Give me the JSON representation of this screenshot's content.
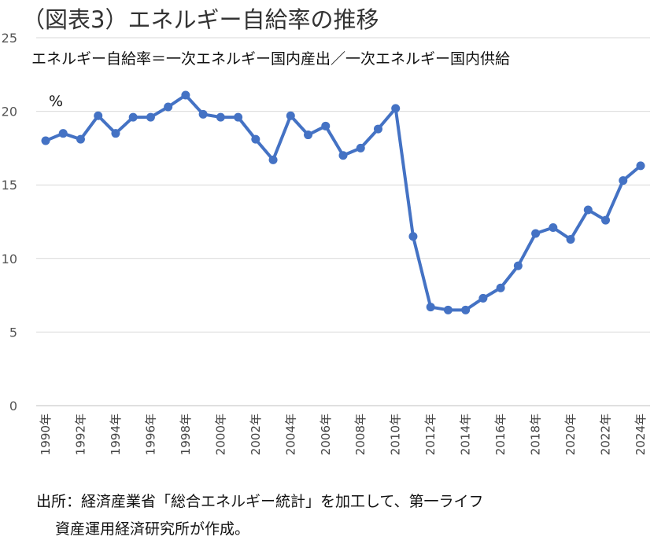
{
  "title": "（図表3）エネルギー自給率の推移",
  "subtitle": "エネルギー自給率＝一次エネルギー国内産出／一次エネルギー国内供給",
  "source": {
    "line1": "出所：経済産業省「総合エネルギー統計」を加工して、第一ライフ",
    "line2": "資産運用経済研究所が作成。"
  },
  "chart_data": {
    "type": "line",
    "unit_label": "%",
    "ylim": [
      0,
      25
    ],
    "y_ticks": [
      "0",
      "5",
      "10",
      "15",
      "20",
      "25"
    ],
    "grid": true,
    "legend": "none",
    "line_color": "#4472C4",
    "x": [
      1990,
      1991,
      1992,
      1993,
      1994,
      1995,
      1996,
      1997,
      1998,
      1999,
      2000,
      2001,
      2002,
      2003,
      2004,
      2005,
      2006,
      2007,
      2008,
      2009,
      2010,
      2011,
      2012,
      2013,
      2014,
      2015,
      2016,
      2017,
      2018,
      2019,
      2020,
      2021,
      2022,
      2023,
      2024
    ],
    "x_tick_labels": [
      "1990年",
      "1992年",
      "1994年",
      "1996年",
      "1998年",
      "2000年",
      "2002年",
      "2004年",
      "2006年",
      "2008年",
      "2010年",
      "2012年",
      "2014年",
      "2016年",
      "2018年",
      "2020年",
      "2022年",
      "2024年"
    ],
    "series": [
      {
        "values": [
          18.0,
          18.5,
          18.1,
          19.7,
          18.5,
          19.6,
          19.6,
          20.3,
          21.1,
          19.8,
          19.6,
          19.6,
          18.1,
          16.7,
          19.7,
          18.4,
          19.0,
          17.0,
          17.5,
          18.8,
          20.2,
          11.5,
          6.7,
          6.5,
          6.5,
          7.3,
          8.0,
          9.5,
          11.7,
          12.1,
          11.3,
          13.3,
          12.6,
          15.3,
          16.3
        ]
      }
    ]
  }
}
